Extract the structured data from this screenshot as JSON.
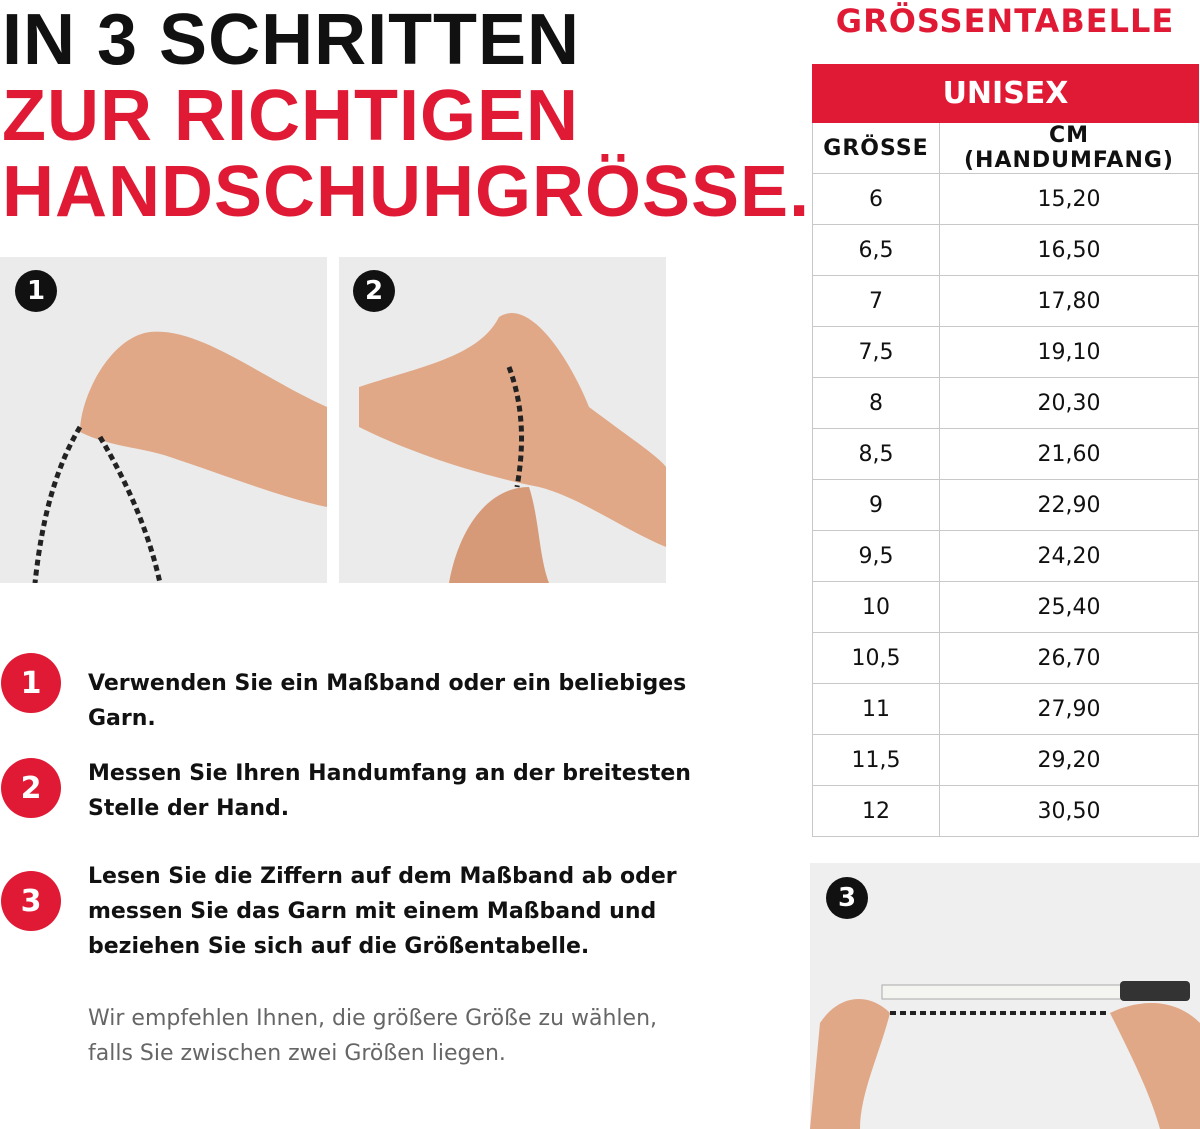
{
  "headline": {
    "line1": "IN 3 SCHRITTEN",
    "line2": "ZUR RICHTIGEN",
    "line3": "HANDSCHUHGRÖSSE."
  },
  "colors": {
    "accent": "#e01a35",
    "text": "#111111",
    "note": "#666666"
  },
  "photos": [
    {
      "badge": "1",
      "icon": "hand-holding-cord-photo"
    },
    {
      "badge": "2",
      "icon": "cord-around-palm-photo"
    },
    {
      "badge": "3",
      "icon": "measuring-tape-photo"
    }
  ],
  "steps": [
    {
      "number": "1",
      "text": "Verwenden Sie ein Maßband oder ein beliebiges Garn."
    },
    {
      "number": "2",
      "text": "Messen Sie Ihren Handumfang an der breitesten Stelle der Hand."
    },
    {
      "number": "3",
      "text": "Lesen Sie die Ziffern auf dem Maßband ab oder messen Sie das Garn mit einem Maßband und beziehen Sie sich auf die Größentabelle."
    }
  ],
  "note": "Wir empfehlen Ihnen, die größere Größe zu wählen, falls Sie zwischen zwei Größen liegen.",
  "size_table": {
    "title": "GRÖSSENTABELLE",
    "group": "UNISEX",
    "columns": [
      "GRÖSSE",
      "CM (HANDUMFANG)"
    ],
    "rows": [
      [
        "6",
        "15,20"
      ],
      [
        "6,5",
        "16,50"
      ],
      [
        "7",
        "17,80"
      ],
      [
        "7,5",
        "19,10"
      ],
      [
        "8",
        "20,30"
      ],
      [
        "8,5",
        "21,60"
      ],
      [
        "9",
        "22,90"
      ],
      [
        "9,5",
        "24,20"
      ],
      [
        "10",
        "25,40"
      ],
      [
        "10,5",
        "26,70"
      ],
      [
        "11",
        "27,90"
      ],
      [
        "11,5",
        "29,20"
      ],
      [
        "12",
        "30,50"
      ]
    ]
  }
}
